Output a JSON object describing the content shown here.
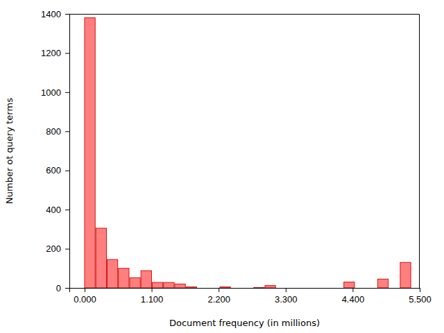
{
  "chart_data": {
    "type": "histogram",
    "x_label": "Document frequency (in millions)",
    "y_label": "Number ot query terms",
    "bins": [
      0,
      0.185,
      0.37,
      0.555,
      0.74,
      0.925,
      1.11,
      1.295,
      1.48,
      1.665,
      1.85,
      2.035,
      2.22,
      2.405,
      2.59,
      2.775,
      2.96,
      3.145,
      3.33,
      3.515,
      3.7,
      3.885,
      4.07,
      4.255,
      4.44,
      4.625,
      4.81,
      4.995,
      5.18,
      5.365
    ],
    "values": [
      1380,
      305,
      145,
      100,
      52,
      88,
      28,
      28,
      20,
      5,
      0,
      0,
      5,
      0,
      0,
      2,
      12,
      0,
      0,
      0,
      0,
      0,
      0,
      30,
      0,
      0,
      45,
      0,
      130
    ],
    "color": "#ff7f7f",
    "xlim": [
      -0.25,
      5.5
    ],
    "xticks": [
      {
        "value": 0,
        "label": "0.000"
      },
      {
        "value": 1.1,
        "label": "1.100"
      },
      {
        "value": 2.2,
        "label": "2.200"
      },
      {
        "value": 3.3,
        "label": "3.300"
      },
      {
        "value": 4.4,
        "label": "4.400"
      },
      {
        "value": 5.5,
        "label": "5.500"
      }
    ],
    "ylim": [
      0,
      1400
    ],
    "yticks": [
      0,
      200,
      400,
      600,
      800,
      1000,
      1200,
      1400
    ],
    "grid": false
  }
}
